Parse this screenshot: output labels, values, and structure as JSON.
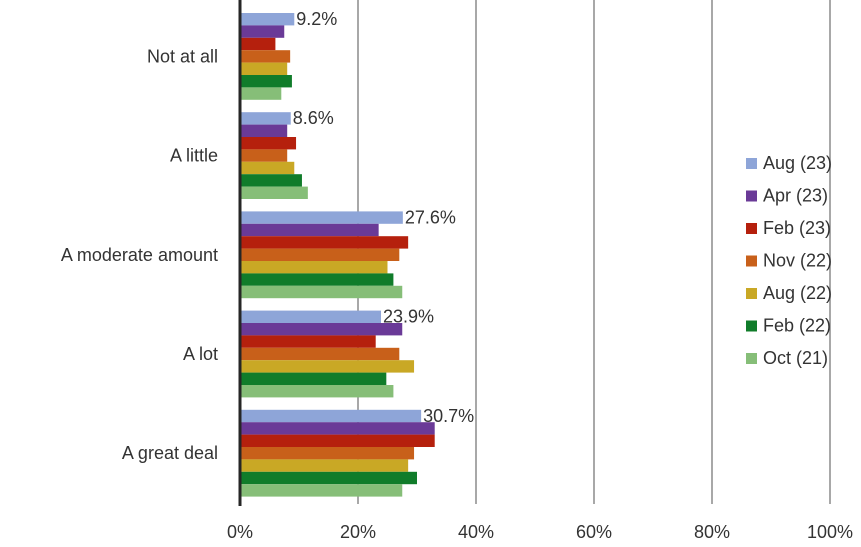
{
  "chart_data": {
    "type": "bar",
    "orientation": "horizontal",
    "categories": [
      "Not at all",
      "A little",
      "A moderate amount",
      "A lot",
      "A great deal"
    ],
    "series": [
      {
        "name": "Aug (23)",
        "color": "#8EA5D8",
        "values": [
          9.2,
          8.6,
          27.6,
          23.9,
          30.7
        ]
      },
      {
        "name": "Apr (23)",
        "color": "#6A3A97",
        "values": [
          7.5,
          8.0,
          23.5,
          27.5,
          33.0
        ]
      },
      {
        "name": "Feb (23)",
        "color": "#B5200D",
        "values": [
          6.0,
          9.5,
          28.5,
          23.0,
          33.0
        ]
      },
      {
        "name": "Nov (22)",
        "color": "#C8601A",
        "values": [
          8.5,
          8.0,
          27.0,
          27.0,
          29.5
        ]
      },
      {
        "name": "Aug (22)",
        "color": "#C9A825",
        "values": [
          8.0,
          9.2,
          25.0,
          29.5,
          28.5
        ]
      },
      {
        "name": "Feb (22)",
        "color": "#107C2A",
        "values": [
          8.8,
          10.5,
          26.0,
          24.8,
          30.0
        ]
      },
      {
        "name": "Oct (21)",
        "color": "#86BE78",
        "values": [
          7.0,
          11.5,
          27.5,
          26.0,
          27.5
        ]
      }
    ],
    "data_labels": [
      "9.2%",
      "8.6%",
      "27.6%",
      "23.9%",
      "30.7%"
    ],
    "x_ticks": [
      "0%",
      "20%",
      "40%",
      "60%",
      "80%",
      "100%"
    ],
    "xlim": [
      0,
      100
    ],
    "grid": true,
    "legend_position": "right"
  }
}
